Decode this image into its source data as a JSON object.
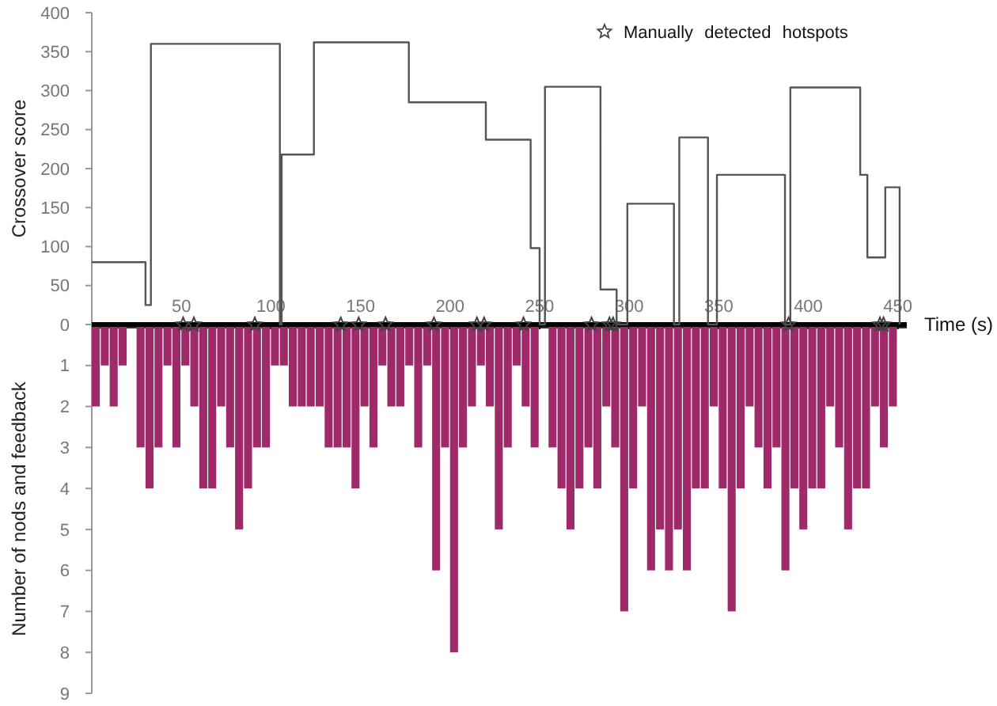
{
  "chart_data": [
    {
      "type": "step",
      "ylabel": "Crossover score",
      "xlabel": "Time (s)",
      "xlim": [
        0,
        455
      ],
      "xticks": [
        50,
        100,
        150,
        200,
        250,
        300,
        350,
        400,
        450
      ],
      "ylim": [
        0,
        400
      ],
      "yticks": [
        0,
        50,
        100,
        150,
        200,
        250,
        300,
        350,
        400
      ],
      "legend": "top right",
      "grid": false,
      "series": [
        {
          "color": "#555555",
          "x": [
            0,
            30,
            33,
            105,
            106,
            124,
            177,
            220,
            245,
            250,
            253,
            284,
            293,
            299,
            325,
            328,
            344,
            349,
            387,
            390,
            429,
            433,
            443,
            451
          ],
          "values": [
            80,
            25,
            360,
            0,
            218,
            362,
            285,
            237,
            98,
            0,
            305,
            45,
            0,
            155,
            0,
            240,
            0,
            192,
            0,
            304,
            192,
            86,
            176,
            0
          ]
        },
        {
          "type": "scatter",
          "name": "Manually detected hotspots",
          "color": "#444444",
          "marker": "star",
          "x": [
            51,
            57,
            91,
            139,
            149,
            164,
            191,
            215,
            219,
            241,
            279,
            289,
            291,
            389,
            440,
            442
          ],
          "values": [
            0,
            0,
            0,
            0,
            0,
            0,
            0,
            0,
            0,
            0,
            0,
            0,
            0,
            0,
            0,
            0
          ]
        }
      ]
    },
    {
      "type": "histogram",
      "ylabel": "Number of nods and feedback",
      "xlim": [
        0,
        455
      ],
      "xticks": [
        50,
        100,
        150,
        200,
        250,
        300,
        350,
        400,
        450
      ],
      "ylim": [
        9,
        0
      ],
      "yticks": [
        1,
        2,
        3,
        4,
        5,
        6,
        7,
        8,
        9
      ],
      "tick_labels": "y",
      "color": "#9e2a6a",
      "bins": [
        0,
        5,
        10,
        15,
        20,
        25,
        30,
        35,
        40,
        45,
        50,
        55,
        60,
        65,
        70,
        75,
        80,
        85,
        90,
        95,
        100,
        105,
        110,
        115,
        120,
        125,
        130,
        135,
        140,
        145,
        150,
        155,
        160,
        165,
        170,
        175,
        180,
        185,
        190,
        195,
        200,
        205,
        210,
        215,
        220,
        225,
        230,
        235,
        240,
        245,
        250,
        255,
        260,
        265,
        270,
        275,
        280,
        285,
        290,
        295,
        300,
        305,
        310,
        315,
        320,
        325,
        330,
        335,
        340,
        345,
        350,
        355,
        360,
        365,
        370,
        375,
        380,
        385,
        390,
        395,
        400,
        405,
        410,
        415,
        420,
        425,
        430,
        435,
        440,
        445,
        450
      ],
      "values": [
        2,
        1,
        2,
        1,
        0,
        3,
        4,
        3,
        1,
        3,
        1,
        2,
        4,
        4,
        2,
        3,
        5,
        4,
        3,
        3,
        1,
        1,
        2,
        2,
        2,
        2,
        3,
        3,
        3,
        4,
        2,
        3,
        1,
        2,
        2,
        1,
        3,
        1,
        6,
        3,
        8,
        3,
        2,
        1,
        2,
        5,
        3,
        1,
        2,
        3,
        0,
        3,
        4,
        5,
        4,
        3,
        4,
        2,
        3,
        7,
        4,
        2,
        6,
        5,
        6,
        5,
        6,
        4,
        4,
        2,
        4,
        7,
        4,
        2,
        3,
        4,
        3,
        6,
        4,
        5,
        4,
        4,
        2,
        3,
        5,
        4,
        4,
        2,
        3,
        2
      ]
    }
  ]
}
